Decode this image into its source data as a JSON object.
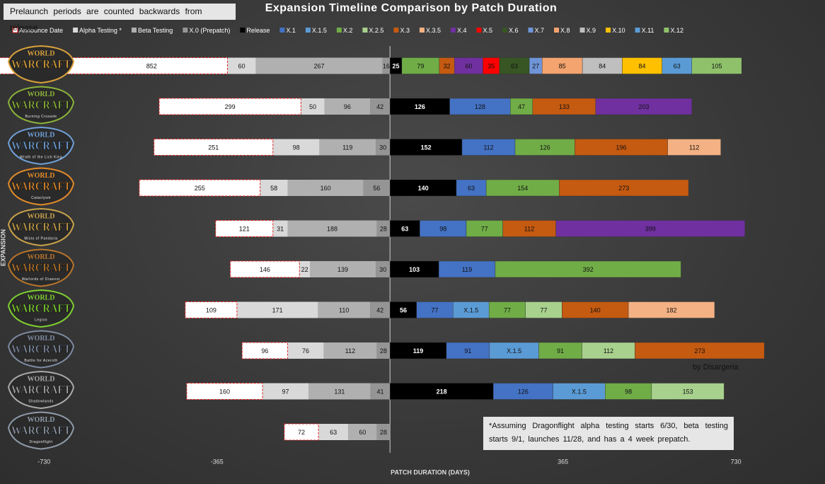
{
  "chart_data": {
    "type": "diverging-bar",
    "title": "Expansion Timeline Comparison by Patch Duration",
    "annotations": [
      "Prelaunch periods are counted backwards from release",
      "by Disargeria",
      "*Assuming Dragonflight alpha testing starts 6/30, beta testing starts 9/1, launches 11/28, and has a 4 week prepatch."
    ],
    "logo": {
      "top": "WORLD",
      "main": "WARCRAFT"
    },
    "categories": [
      null,
      "Burning Crusade",
      "Wrath of the Lich King",
      "Cataclysm",
      "Mists of Pandaria",
      "Warlords of Draenor",
      "Legion",
      "Battle for Azeroth",
      "Shadowlands",
      "Dragonflight"
    ],
    "y_label": "EXPANSION",
    "x_label": "PATCH DURATION (DAYS)",
    "xlim": [
      -820,
      800
    ],
    "xticks": [
      -730,
      -365,
      365,
      730
    ],
    "series": [
      {
        "name": "Announce Date",
        "color": "#ffffff",
        "border_color": "#e02020",
        "direction": "left",
        "values": [
          852,
          299,
          251,
          255,
          121,
          146,
          109,
          96,
          160,
          72
        ]
      },
      {
        "name": "Alpha Testing *",
        "color": "#d9d9d9",
        "direction": "left",
        "values": [
          60,
          50,
          98,
          58,
          31,
          22,
          171,
          76,
          97,
          63
        ]
      },
      {
        "name": "Beta Testing",
        "color": "#b0b0b0",
        "direction": "left",
        "values": [
          267,
          96,
          119,
          160,
          188,
          139,
          110,
          112,
          131,
          60
        ]
      },
      {
        "name": "X.0 (Prepatch)",
        "color": "#959595",
        "direction": "left",
        "values": [
          16,
          42,
          30,
          56,
          28,
          30,
          42,
          28,
          41,
          28
        ]
      },
      {
        "name": "Release",
        "color": "#000000",
        "label_color": "#ffffff",
        "direction": "right",
        "values": [
          25,
          126,
          152,
          140,
          63,
          103,
          56,
          119,
          218,
          null
        ]
      },
      {
        "name": "X.1",
        "color": "#4472c4",
        "direction": "right",
        "values": [
          null,
          128,
          112,
          63,
          98,
          119,
          77,
          91,
          126,
          null
        ]
      },
      {
        "name": "X.1.5",
        "color": "#5b9bd5",
        "direction": "right",
        "values": [
          null,
          null,
          null,
          null,
          null,
          null,
          76,
          104,
          110,
          null
        ],
        "value_labels": [
          null,
          null,
          null,
          null,
          null,
          null,
          "X.1.5",
          "X.1.5",
          "X.1.5",
          null
        ]
      },
      {
        "name": "X.2",
        "color": "#70ad47",
        "direction": "right",
        "values": [
          79,
          47,
          126,
          154,
          77,
          392,
          77,
          91,
          98,
          null
        ]
      },
      {
        "name": "X.2.5",
        "color": "#a9d18e",
        "direction": "right",
        "values": [
          null,
          null,
          null,
          null,
          null,
          null,
          77,
          112,
          153,
          null
        ]
      },
      {
        "name": "X.3",
        "color": "#c55a11",
        "direction": "right",
        "values": [
          32,
          133,
          196,
          273,
          112,
          null,
          140,
          273,
          null,
          null
        ]
      },
      {
        "name": "X.3.5",
        "color": "#f4b183",
        "direction": "right",
        "values": [
          null,
          null,
          112,
          null,
          null,
          null,
          182,
          null,
          null,
          null
        ]
      },
      {
        "name": "X.4",
        "color": "#7030a0",
        "direction": "right",
        "values": [
          60,
          203,
          null,
          null,
          399,
          null,
          null,
          null,
          null,
          null
        ]
      },
      {
        "name": "X.5",
        "color": "#ff0000",
        "direction": "right",
        "values": [
          35,
          null,
          null,
          null,
          null,
          null,
          null,
          null,
          null,
          null
        ]
      },
      {
        "name": "X.6",
        "color": "#375623",
        "direction": "right",
        "values": [
          63,
          null,
          null,
          null,
          null,
          null,
          null,
          null,
          null,
          null
        ]
      },
      {
        "name": "X.7",
        "color": "#6f95d8",
        "direction": "right",
        "values": [
          27,
          null,
          null,
          null,
          null,
          null,
          null,
          null,
          null,
          null
        ]
      },
      {
        "name": "X.8",
        "color": "#f4a46f",
        "direction": "right",
        "values": [
          85,
          null,
          null,
          null,
          null,
          null,
          null,
          null,
          null,
          null
        ]
      },
      {
        "name": "X.9",
        "color": "#bfbfbf",
        "direction": "right",
        "values": [
          84,
          null,
          null,
          null,
          null,
          null,
          null,
          null,
          null,
          null
        ]
      },
      {
        "name": "X.10",
        "color": "#ffc000",
        "direction": "right",
        "values": [
          84,
          null,
          null,
          null,
          null,
          null,
          null,
          null,
          null,
          null
        ]
      },
      {
        "name": "X.11",
        "color": "#5b9bd5",
        "direction": "right",
        "values": [
          63,
          null,
          null,
          null,
          null,
          null,
          null,
          null,
          null,
          null
        ]
      },
      {
        "name": "X.12",
        "color": "#8fc16a",
        "direction": "right",
        "values": [
          105,
          null,
          null,
          null,
          null,
          null,
          null,
          null,
          null,
          null
        ]
      }
    ]
  }
}
